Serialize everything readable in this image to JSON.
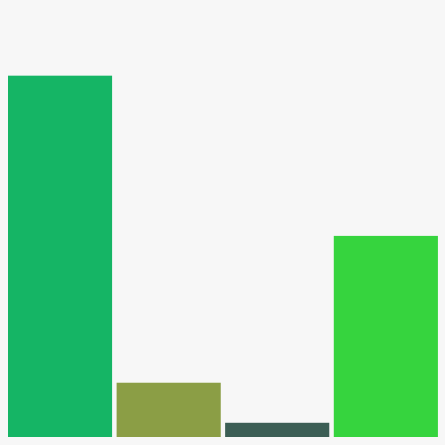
{
  "chart_data": {
    "type": "bar",
    "values": [
      406,
      61,
      16,
      226
    ],
    "colors": [
      "#15b565",
      "#8b9e45",
      "#3c5e55",
      "#36d43e"
    ],
    "ylim": [
      0,
      491
    ]
  }
}
